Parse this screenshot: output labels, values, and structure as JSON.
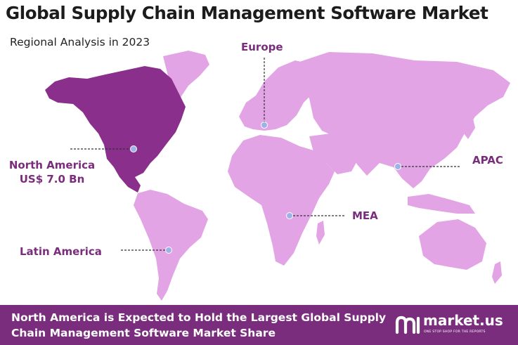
{
  "title": "Global Supply Chain Management Software Market",
  "subtitle": "Regional Analysis in 2023",
  "colors": {
    "highlight_region": "#8a2f8b",
    "other_regions": "#e2a4e4",
    "label_text": "#7a2d7d",
    "footer_bg": "#7a2d7d",
    "marker": "#9db3e8"
  },
  "regions": {
    "north_america": {
      "name": "North America",
      "value": "US$ 7.0 Bn",
      "highlighted": true
    },
    "europe": {
      "name": "Europe",
      "highlighted": false
    },
    "apac": {
      "name": "APAC",
      "highlighted": false
    },
    "mea": {
      "name": "MEA",
      "highlighted": false
    },
    "latin_america": {
      "name": "Latin America",
      "highlighted": false
    }
  },
  "footer": {
    "text": "North America is Expected to Hold the Largest Global Supply Chain Management Software Market Share"
  },
  "logo": {
    "name": "market.us",
    "tagline": "ONE STOP SHOP FOR THE REPORTS"
  }
}
